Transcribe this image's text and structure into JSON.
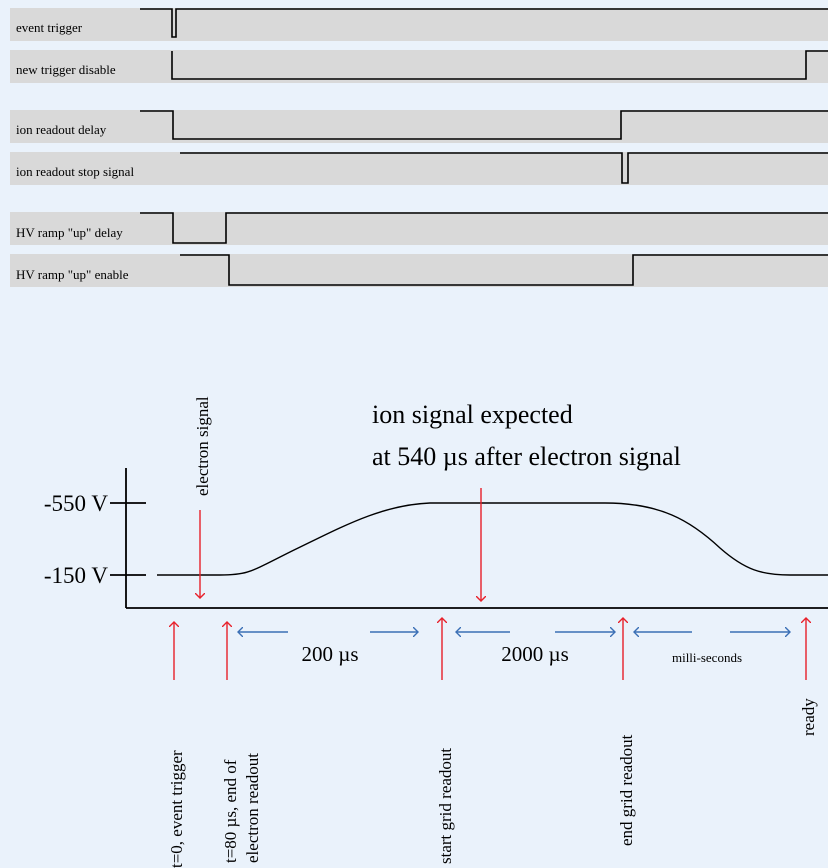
{
  "signals": [
    {
      "label": "event trigger"
    },
    {
      "label": "new trigger disable"
    },
    {
      "label": "ion readout delay"
    },
    {
      "label": "ion readout stop signal"
    },
    {
      "label": "HV ramp \"up\" delay"
    },
    {
      "label": "HV ramp \"up\" enable"
    }
  ],
  "voltage": {
    "high_label": "-550 V",
    "low_label": "-150 V"
  },
  "annotations": {
    "electron_signal": "electron signal",
    "ion_line1": "ion signal expected",
    "ion_line2": "at 540 µs after electron signal"
  },
  "intervals": [
    {
      "label": "200 µs"
    },
    {
      "label": "2000 µs"
    },
    {
      "label": "milli-seconds"
    }
  ],
  "events": {
    "event_trigger": "t=0, event trigger",
    "end_electron_line1": "t=80 µs, end of",
    "end_electron_line2": "electron readout",
    "start_grid": "start grid readout",
    "end_grid": "end grid readout",
    "ready": "ready"
  },
  "colors": {
    "background": "#eaf2fb",
    "signal_band": "#d9d9d9",
    "event_arrow": "#e8202a",
    "interval_arrow": "#3a6fb5",
    "ink": "#000000"
  }
}
